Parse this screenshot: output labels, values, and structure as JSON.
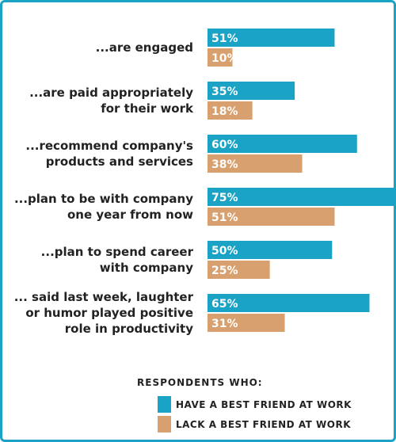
{
  "chart_data": {
    "type": "bar",
    "orientation": "horizontal",
    "categories": [
      [
        "...are engaged"
      ],
      [
        "...are paid appropriately",
        "for their work"
      ],
      [
        "...recommend company's",
        "products and services"
      ],
      [
        "...plan to be with company",
        "one year from now"
      ],
      [
        "...plan to spend career",
        "with company"
      ],
      [
        "... said last week, laughter",
        "or humor played positive",
        "role in productivity"
      ]
    ],
    "series": [
      {
        "name": "HAVE A BEST FRIEND AT WORK",
        "values": [
          51,
          35,
          60,
          75,
          50,
          65
        ],
        "labels": [
          "51%",
          "35%",
          "60%",
          "75%",
          "50%",
          "65%"
        ],
        "color": "#1ba3c6"
      },
      {
        "name": "LACK A BEST FRIEND AT WORK",
        "values": [
          10,
          18,
          38,
          51,
          25,
          31
        ],
        "labels": [
          "10%",
          "18%",
          "38%",
          "51%",
          "25%",
          "31%"
        ],
        "color": "#d9a06f"
      }
    ],
    "xlim": [
      0,
      75
    ],
    "grid": false,
    "legend": {
      "title": "RESPONDENTS WHO:",
      "position": "bottom-right"
    }
  },
  "colors": {
    "border": "#1ba3c6",
    "text": "#222222",
    "bar_label": "#ffffff"
  }
}
